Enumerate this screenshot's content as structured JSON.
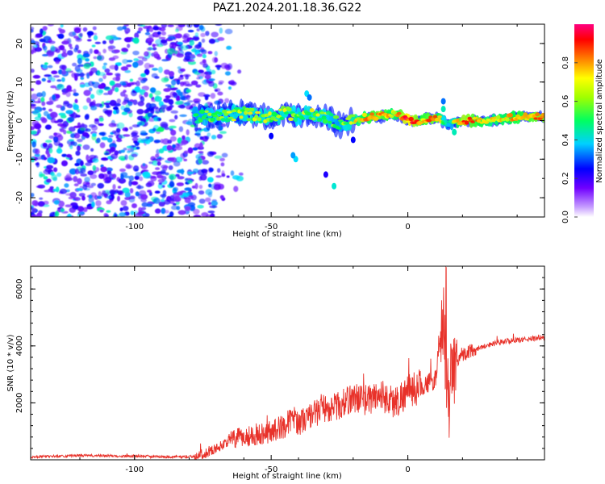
{
  "figure": {
    "title": "PAZ1.2024.201.18.36.G22"
  },
  "chart_data": [
    {
      "type": "heatmap",
      "xlabel": "Height of straight line (km)",
      "ylabel": "Frequency (Hz)",
      "xlim": [
        -138,
        50
      ],
      "ylim": [
        -25,
        25
      ],
      "xticks": [
        -100,
        -50,
        0
      ],
      "xtick_labels": [
        "-100",
        "-50",
        "0"
      ],
      "yticks": [
        -20,
        -10,
        0,
        10,
        20
      ],
      "ytick_labels": [
        "-20",
        "-10",
        "0",
        "10",
        "20"
      ],
      "colorbar": {
        "label": "Normalized spectral amplitude",
        "range": [
          0,
          1
        ],
        "ticks": [
          0.0,
          0.2,
          0.4,
          0.6,
          0.8
        ],
        "tick_labels": [
          "0.0",
          "0.2",
          "0.4",
          "0.6",
          "0.8"
        ],
        "colormap": [
          "#ffffff",
          "#6000ff",
          "#0000ff",
          "#00e0ff",
          "#00ff40",
          "#ffff00",
          "#ff8000",
          "#ff0000",
          "#ff0080"
        ]
      },
      "ridge": {
        "x": [
          -78,
          -70,
          -60,
          -55,
          -50,
          -45,
          -40,
          -35,
          -30,
          -25,
          -20,
          -15,
          -10,
          -5,
          0,
          5,
          10,
          15,
          20,
          30,
          40,
          50
        ],
        "freq": [
          1,
          1,
          2,
          1,
          1,
          2,
          1,
          2,
          1,
          -1,
          0,
          1,
          1,
          2,
          0,
          0,
          1,
          -1,
          0,
          0,
          1,
          1
        ],
        "amplitude": [
          0.4,
          0.45,
          0.5,
          0.5,
          0.5,
          0.5,
          0.45,
          0.5,
          0.45,
          0.4,
          0.55,
          0.7,
          0.8,
          0.6,
          0.95,
          0.7,
          0.8,
          0.3,
          0.85,
          0.6,
          0.7,
          0.8
        ]
      },
      "noise_region_x": [
        -138,
        -75
      ],
      "grid": false
    },
    {
      "type": "line",
      "xlabel": "Height of straight line (km)",
      "ylabel": "SNR (10 * v/v)",
      "xlim": [
        -138,
        50
      ],
      "ylim": [
        0,
        6800
      ],
      "xticks": [
        -100,
        -50,
        0
      ],
      "xtick_labels": [
        "-100",
        "-50",
        "0"
      ],
      "yticks": [
        2000,
        4000,
        6000
      ],
      "ytick_labels": [
        "2000",
        "4000",
        "6000"
      ],
      "series": [
        {
          "color": "#e8322a",
          "x": [
            -138,
            -120,
            -110,
            -100,
            -90,
            -80,
            -75,
            -70,
            -65,
            -60,
            -55,
            -50,
            -45,
            -42,
            -40,
            -38,
            -35,
            -30,
            -25,
            -20,
            -15,
            -10,
            -5,
            0,
            5,
            10,
            13,
            14,
            15,
            16,
            17,
            18,
            20,
            25,
            30,
            35,
            40,
            45,
            50
          ],
          "y": [
            100,
            150,
            140,
            130,
            110,
            100,
            200,
            400,
            700,
            800,
            900,
            1000,
            1200,
            1500,
            1300,
            1400,
            1600,
            1800,
            1900,
            2200,
            2100,
            2300,
            2000,
            2400,
            2600,
            2800,
            5000,
            3000,
            2200,
            3600,
            3200,
            3500,
            3700,
            3900,
            4050,
            4150,
            4200,
            4250,
            4300
          ]
        }
      ],
      "grid": false
    }
  ]
}
